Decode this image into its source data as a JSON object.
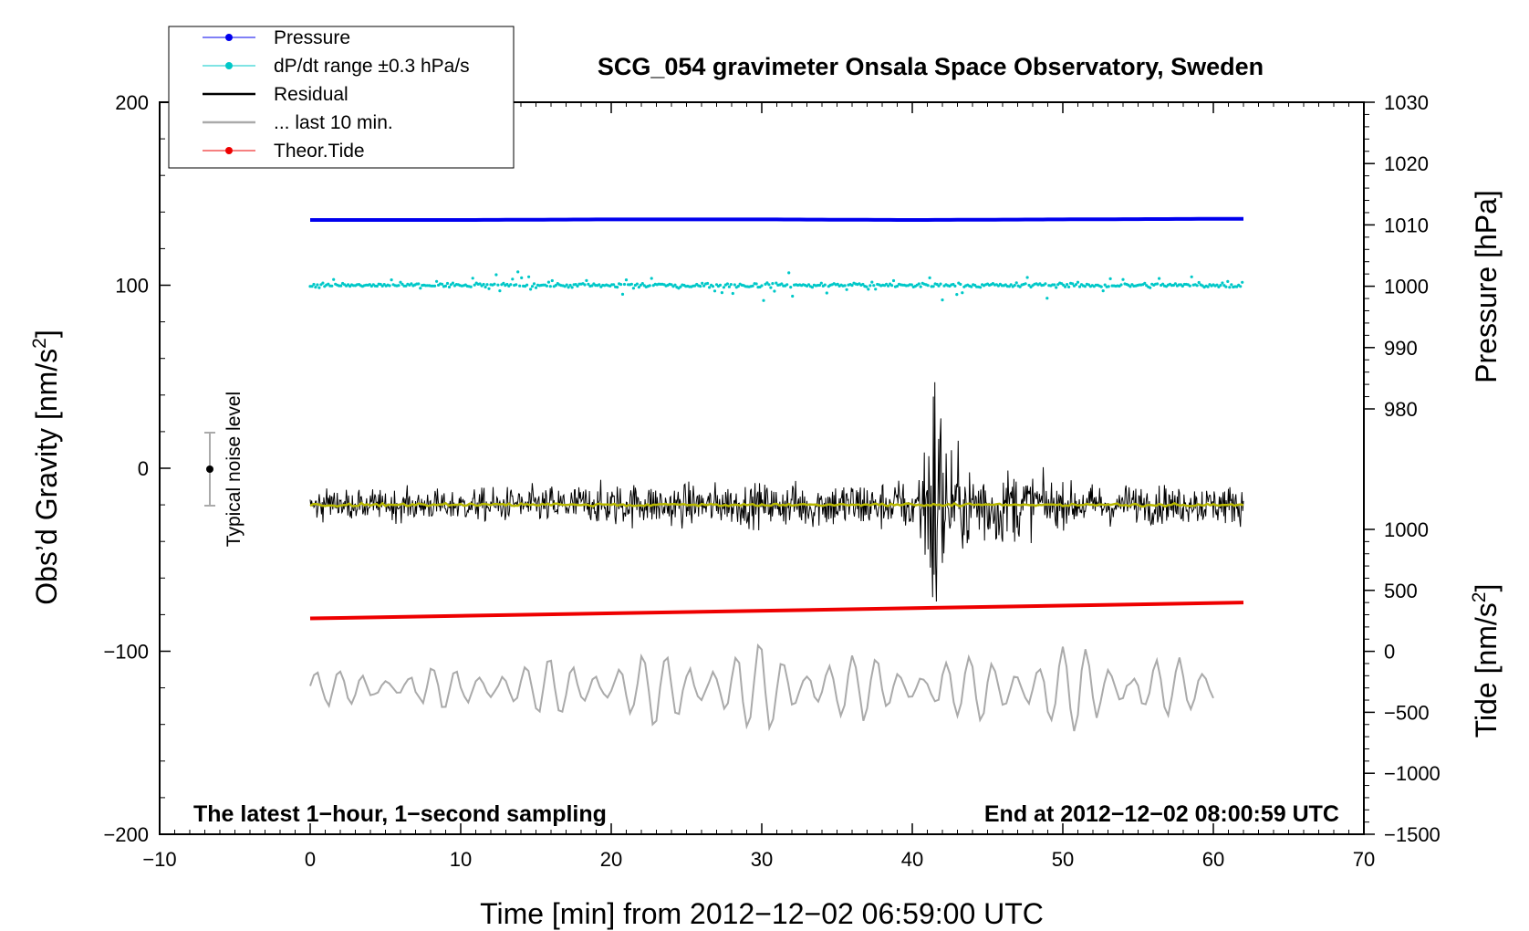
{
  "chart_data": {
    "type": "line",
    "title": "SCG_054 gravimeter Onsala Space Observatory, Sweden",
    "xlabel": "Time [min] from 2012−12−02 06:59:00 UTC",
    "ylabel_left": "Obs’d Gravity [nm/s",
    "ylabel_left_sup": "2",
    "ylabel_left_close": "]",
    "ylabel_pressure": "Pressure [hPa]",
    "ylabel_tide": "Tide [nm/s",
    "ylabel_tide_sup": "2",
    "ylabel_tide_close": "]",
    "xlim": [
      -10,
      70
    ],
    "ylim": [
      -200,
      200
    ],
    "pressure_lim": [
      980,
      1030
    ],
    "tide_lim": [
      -1500,
      1000
    ],
    "x_ticks": [
      "−10",
      "0",
      "10",
      "20",
      "30",
      "40",
      "50",
      "60",
      "70"
    ],
    "y_ticks": [
      "−200",
      "−100",
      "0",
      "100",
      "200"
    ],
    "pressure_ticks": [
      "980",
      "990",
      "1000",
      "1010",
      "1020",
      "1030"
    ],
    "tide_ticks": [
      "−1500",
      "−1000",
      "−500",
      "0",
      "500",
      "1000"
    ],
    "legend": [
      {
        "label": "Pressure",
        "color": "#0000ee",
        "marker": "dot"
      },
      {
        "label": "dP/dt range ±0.3 hPa/s",
        "color": "#00c8c8",
        "marker": "dot"
      },
      {
        "label": "Residual",
        "color": "#000000",
        "marker": "line"
      },
      {
        "label": "... last 10 min.",
        "color": "#aaaaaa",
        "marker": "line"
      },
      {
        "label": "Theor.Tide",
        "color": "#ee0000",
        "marker": "dot"
      }
    ],
    "legend_position": "top-left",
    "annotations": {
      "bottom_left": "The latest 1−hour, 1−second sampling",
      "bottom_right": "End at 2012−12−02 08:00:59 UTC",
      "noise_label": "Typical noise level"
    },
    "noise_bar": {
      "x": -7,
      "y": 0,
      "err": 20
    },
    "series": [
      {
        "name": "Pressure",
        "axis": "pressure",
        "color": "#0000ee",
        "x": [
          0,
          10,
          20,
          30,
          40,
          50,
          62
        ],
        "values": [
          1010.8,
          1010.8,
          1010.9,
          1010.9,
          1010.8,
          1010.9,
          1011.0
        ]
      },
      {
        "name": "dP/dt range ±0.3 hPa/s",
        "axis": "gravity",
        "color": "#00c8c8",
        "x": [
          0,
          62
        ],
        "values": [
          100,
          100
        ],
        "scatter": 3
      },
      {
        "name": "Residual",
        "axis": "gravity",
        "color": "#000000",
        "x": [
          0,
          10,
          20,
          30,
          40,
          41.5,
          50,
          62
        ],
        "values": [
          -20,
          -20,
          -20,
          -20,
          -20,
          -20,
          -20,
          -20
        ],
        "envelope": [
          15,
          15,
          20,
          20,
          25,
          55,
          20,
          18
        ]
      },
      {
        "name": "... last 10 min.",
        "axis": "gravity",
        "color": "#aaaaaa",
        "x": [
          0,
          10,
          20,
          30,
          40,
          50,
          60
        ],
        "values": [
          -120,
          -120,
          -120,
          -120,
          -120,
          -120,
          -120
        ],
        "envelope": [
          10,
          12,
          18,
          25,
          15,
          25,
          12
        ]
      },
      {
        "name": "Theor.Tide",
        "axis": "tide",
        "color": "#ee0000",
        "x": [
          0,
          62
        ],
        "values": [
          270,
          400
        ]
      }
    ]
  }
}
